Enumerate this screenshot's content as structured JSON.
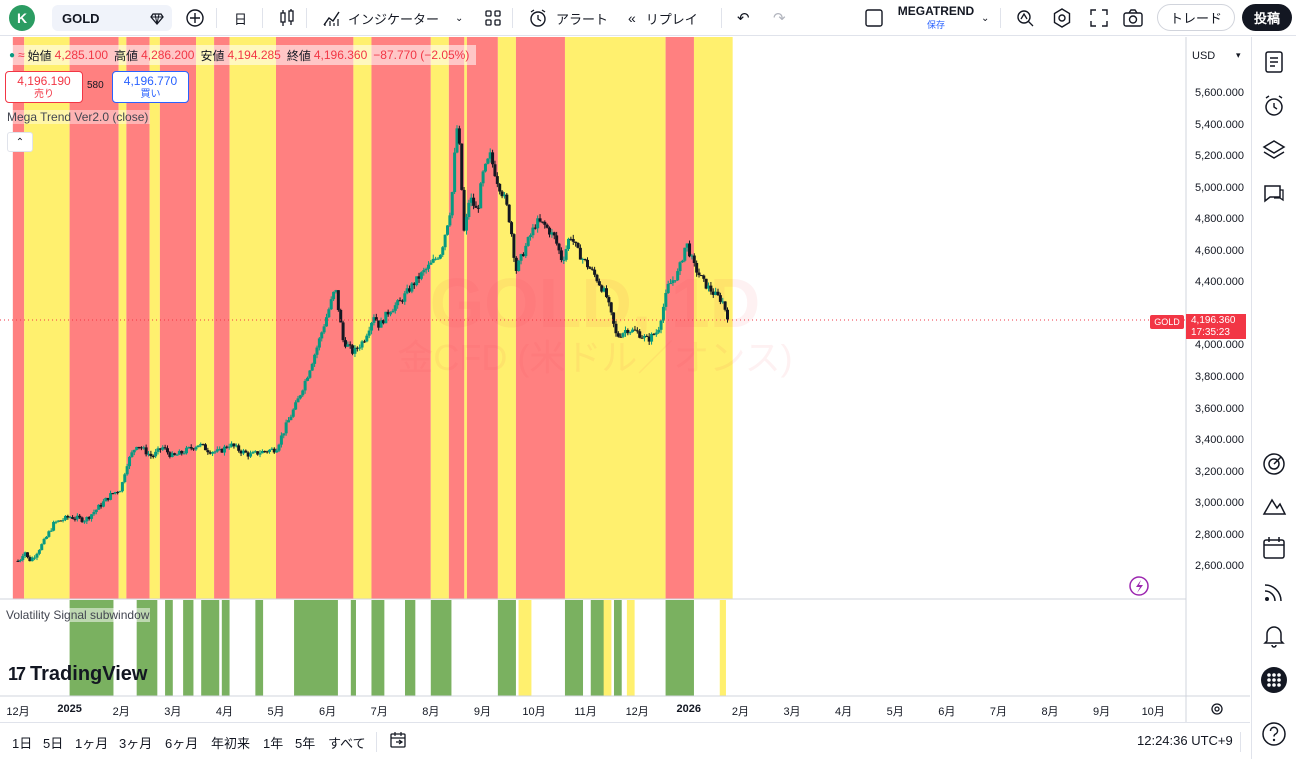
{
  "toolbar": {
    "avatar_letter": "K",
    "symbol": "GOLD",
    "timeframe": "日",
    "indicators_label": "インジケーター",
    "alert_label": "アラート",
    "replay_label": "リプレイ",
    "layout_name": "MEGATREND",
    "layout_status": "保存",
    "trade_label": "トレード",
    "post_label": "投稿",
    "icons": [
      "plus-circle-icon",
      "bar-style-icon",
      "indicators-icon",
      "templates-icon",
      "alarm-icon",
      "replay-icon",
      "undo-icon",
      "redo-icon",
      "layout-square-icon",
      "chevron-down-icon",
      "magic-icon",
      "gear-icon",
      "fullscreen-icon",
      "camera-icon"
    ]
  },
  "legend": {
    "open_label": "始値",
    "open": "4,285.100",
    "high_label": "高値",
    "high": "4,286.200",
    "low_label": "安値",
    "low": "4,194.285",
    "close_label": "終値",
    "close": "4,196.360",
    "change": "−87.770 (−2.05%)",
    "sell_price": "4,196.190",
    "sell_label": "売り",
    "spread": "580",
    "buy_price": "4,196.770",
    "buy_label": "買い",
    "indicator": "Mega Trend Ver2.0 (close)",
    "subwindow": "Volatility Signal subwindow"
  },
  "watermark": {
    "symbol": "GOLD, 1D",
    "name": "金CFD (米ドル／オンス)"
  },
  "price_scale": {
    "currency": "USD",
    "last_price": "4,196.360",
    "countdown": "17:35:23",
    "symbol_tag": "GOLD"
  },
  "branding": {
    "logo_text": "TradingView"
  },
  "chart_data": {
    "type": "candlestick",
    "title": "GOLD, 1D",
    "y_ticks": [
      "5,600.000",
      "5,400.000",
      "5,200.000",
      "5,000.000",
      "4,800.000",
      "4,600.000",
      "4,400.000",
      "4,000.000",
      "3,800.000",
      "3,600.000",
      "3,400.000",
      "3,200.000",
      "3,000.000",
      "2,800.000",
      "2,600.000"
    ],
    "ylim": [
      2500,
      5850
    ],
    "x_ticks": [
      "12月",
      "2025",
      "2月",
      "3月",
      "4月",
      "5月",
      "6月",
      "7月",
      "8月",
      "9月",
      "10月",
      "11月",
      "12月",
      "2026",
      "2月",
      "3月",
      "4月",
      "5月",
      "6月",
      "7月",
      "8月",
      "9月",
      "10月"
    ],
    "close_path": [
      [
        0,
        2640
      ],
      [
        0.05,
        2655
      ],
      [
        0.1,
        2690
      ],
      [
        0.15,
        2700
      ],
      [
        0.2,
        2640
      ],
      [
        0.3,
        2665
      ],
      [
        0.5,
        2760
      ],
      [
        0.7,
        2880
      ],
      [
        1.0,
        2920
      ],
      [
        1.3,
        2900
      ],
      [
        1.5,
        2960
      ],
      [
        1.8,
        3060
      ],
      [
        2.0,
        3100
      ],
      [
        2.1,
        3250
      ],
      [
        2.3,
        3380
      ],
      [
        2.6,
        3300
      ],
      [
        2.8,
        3360
      ],
      [
        3.0,
        3300
      ],
      [
        3.2,
        3330
      ],
      [
        3.5,
        3380
      ],
      [
        3.7,
        3340
      ],
      [
        3.9,
        3330
      ],
      [
        4.1,
        3380
      ],
      [
        4.3,
        3340
      ],
      [
        4.5,
        3310
      ],
      [
        4.7,
        3330
      ],
      [
        5.0,
        3350
      ],
      [
        5.2,
        3500
      ],
      [
        5.4,
        3640
      ],
      [
        5.6,
        3810
      ],
      [
        5.8,
        4000
      ],
      [
        6.0,
        4210
      ],
      [
        6.15,
        4370
      ],
      [
        6.3,
        4040
      ],
      [
        6.5,
        3960
      ],
      [
        6.7,
        4040
      ],
      [
        6.9,
        4200
      ],
      [
        7.0,
        4130
      ],
      [
        7.2,
        4230
      ],
      [
        7.4,
        4280
      ],
      [
        7.6,
        4370
      ],
      [
        7.8,
        4450
      ],
      [
        8.0,
        4520
      ],
      [
        8.2,
        4600
      ],
      [
        8.4,
        4900
      ],
      [
        8.5,
        5400
      ],
      [
        8.55,
        5280
      ],
      [
        8.65,
        4700
      ],
      [
        8.75,
        4950
      ],
      [
        8.9,
        4850
      ],
      [
        9.0,
        5080
      ],
      [
        9.15,
        5210
      ],
      [
        9.3,
        5040
      ],
      [
        9.45,
        4920
      ],
      [
        9.55,
        4760
      ],
      [
        9.65,
        4480
      ],
      [
        9.75,
        4560
      ],
      [
        9.9,
        4680
      ],
      [
        10.05,
        4790
      ],
      [
        10.2,
        4770
      ],
      [
        10.4,
        4690
      ],
      [
        10.55,
        4540
      ],
      [
        10.7,
        4710
      ],
      [
        10.85,
        4600
      ],
      [
        11.0,
        4530
      ],
      [
        11.2,
        4440
      ],
      [
        11.4,
        4320
      ],
      [
        11.6,
        4060
      ],
      [
        11.8,
        4110
      ],
      [
        12.0,
        4090
      ],
      [
        12.2,
        4040
      ],
      [
        12.4,
        4100
      ],
      [
        12.6,
        4380
      ],
      [
        12.8,
        4470
      ],
      [
        12.95,
        4660
      ],
      [
        13.1,
        4510
      ],
      [
        13.3,
        4400
      ],
      [
        13.5,
        4330
      ],
      [
        13.65,
        4290
      ],
      [
        13.75,
        4196
      ]
    ],
    "trend_bands": [
      [
        "red",
        -0.1,
        0.12
      ],
      [
        "yellow",
        0.12,
        1.0
      ],
      [
        "red",
        1.0,
        1.95
      ],
      [
        "yellow",
        1.95,
        2.1
      ],
      [
        "red",
        2.1,
        2.55
      ],
      [
        "yellow",
        2.55,
        2.75
      ],
      [
        "red",
        2.75,
        3.45
      ],
      [
        "yellow",
        3.45,
        3.8
      ],
      [
        "red",
        3.8,
        4.1
      ],
      [
        "yellow",
        4.1,
        5.0
      ],
      [
        "red",
        5.0,
        6.5
      ],
      [
        "yellow",
        6.5,
        6.85
      ],
      [
        "red",
        6.85,
        8.0
      ],
      [
        "yellow",
        8.0,
        8.35
      ],
      [
        "red",
        8.35,
        8.65
      ],
      [
        "yellow",
        8.65,
        8.7
      ],
      [
        "red",
        8.7,
        9.3
      ],
      [
        "yellow",
        9.3,
        9.65
      ],
      [
        "red",
        9.65,
        10.6
      ],
      [
        "yellow",
        10.6,
        12.55
      ],
      [
        "red",
        12.55,
        13.1
      ],
      [
        "yellow",
        13.1,
        13.85
      ]
    ],
    "signal_blocks": [
      [
        "green",
        1.0,
        1.85
      ],
      [
        "green",
        2.3,
        2.7
      ],
      [
        "green",
        2.85,
        3.0
      ],
      [
        "green",
        3.2,
        3.4
      ],
      [
        "green",
        3.55,
        3.9
      ],
      [
        "green",
        3.95,
        4.1
      ],
      [
        "green",
        4.6,
        4.75
      ],
      [
        "green",
        5.35,
        6.2
      ],
      [
        "green",
        6.45,
        6.55
      ],
      [
        "green",
        6.85,
        7.1
      ],
      [
        "green",
        7.5,
        7.7
      ],
      [
        "green",
        8.0,
        8.4
      ],
      [
        "green",
        9.3,
        9.65
      ],
      [
        "green",
        10.6,
        10.95
      ],
      [
        "green",
        11.1,
        11.4
      ],
      [
        "green",
        11.55,
        11.7
      ],
      [
        "green",
        12.55,
        13.1
      ],
      [
        "yellow",
        9.7,
        9.95
      ],
      [
        "yellow",
        11.35,
        11.5
      ],
      [
        "yellow",
        11.8,
        11.95
      ],
      [
        "yellow",
        13.6,
        13.72
      ]
    ]
  },
  "time_ranges": [
    "1日",
    "5日",
    "1ヶ月",
    "3ヶ月",
    "6ヶ月",
    "年初来",
    "1年",
    "5年",
    "すべて"
  ],
  "clock": "12:24:36 UTC+9",
  "right_sidebar_icons": [
    "watchlist-icon",
    "alerts-clock-icon",
    "layers-icon",
    "chat-icon",
    "target-icon",
    "ideas-icon",
    "calendar-icon",
    "broadcast-icon",
    "bell-icon",
    "apps-grid-icon",
    "help-icon"
  ],
  "colors": {
    "trend_red": "#ff8080",
    "trend_yellow": "#fff06e",
    "signal_green": "#7ab160",
    "candle_up": "#089981",
    "candle_down": "#131722",
    "last_price": "#f23645"
  }
}
